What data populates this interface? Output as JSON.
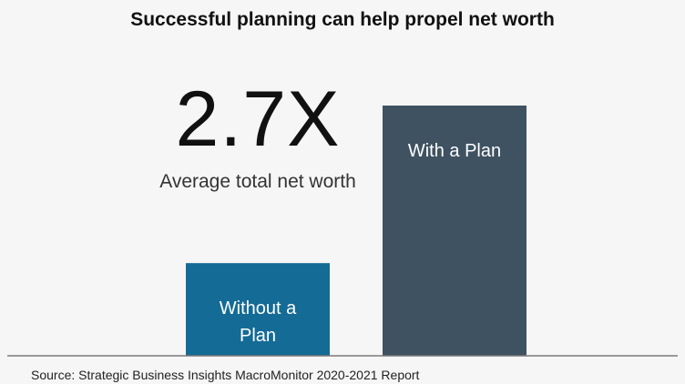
{
  "chart_data": {
    "type": "bar",
    "title": "Successful planning can help propel net worth",
    "categories": [
      "Without a Plan",
      "With a Plan"
    ],
    "values": [
      1,
      2.7
    ],
    "category_label_lines": [
      [
        "Without a",
        "Plan"
      ],
      [
        "With a Plan"
      ]
    ],
    "annotation": {
      "value_text": "2.7X",
      "caption": "Average total net worth"
    },
    "colors": [
      "#146b95",
      "#3f5262"
    ],
    "source": "Source: Strategic Business Insights MacroMonitor 2020-2021 Report"
  }
}
